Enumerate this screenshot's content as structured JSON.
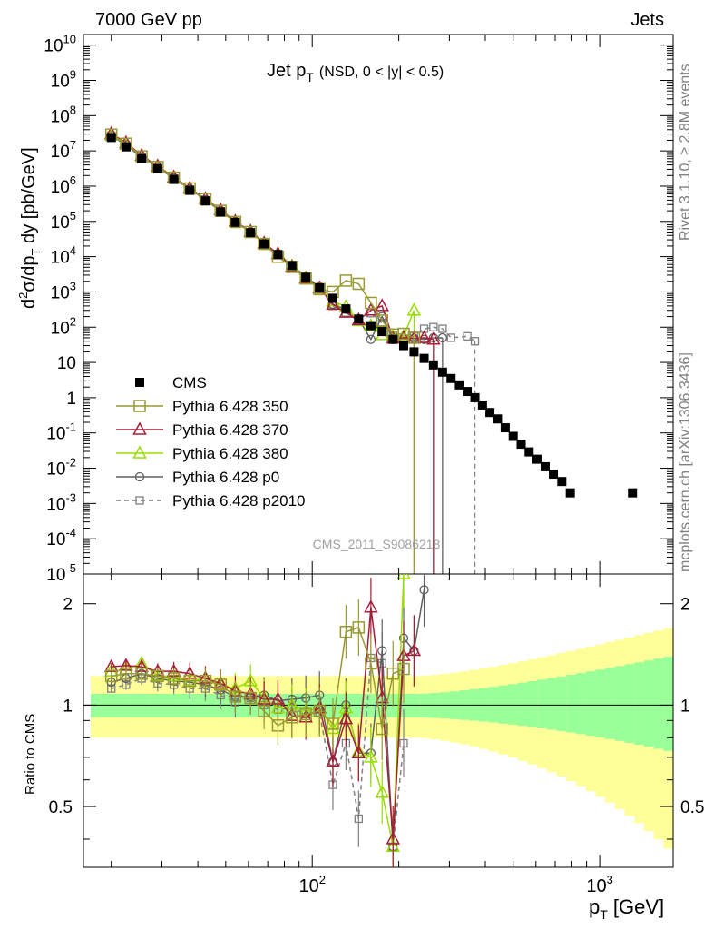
{
  "header": {
    "left": "7000 GeV pp",
    "right": "Jets",
    "side_right_top": "Rivet 3.1.10, ≥ 2.8M events",
    "side_right_bottom": "mcplots.cern.ch [arXiv:1306.3436]",
    "watermark": "CMS_2011_S9086218"
  },
  "main_panel": {
    "title_main": "Jet p",
    "title_sub": "T",
    "title_cut": "(NSD,   0 < |y| < 0.5)",
    "ylabel": "d²σ/dp_T dy [pb/GeV]",
    "ytick_labels": [
      "10^10",
      "10^9",
      "10^8",
      "10^7",
      "10^6",
      "10^5",
      "10^4",
      "10^3",
      "10^2",
      "10",
      "1",
      "10^-1",
      "10^-2",
      "10^-3",
      "10^-4",
      "10^-5"
    ]
  },
  "ratio_panel": {
    "ylabel": "Ratio to CMS",
    "ytick_labels": [
      "2",
      "1",
      "0.5"
    ]
  },
  "xaxis": {
    "label": "p_T [GeV]",
    "tick_labels": [
      "10^2",
      "10^3"
    ]
  },
  "chart_data": {
    "type": "scatter",
    "xscale": "log",
    "yscale": "log",
    "xlim": [
      16,
      1800
    ],
    "ylim": [
      1e-05,
      20000000000.0
    ],
    "ratio_ylim": [
      0.33,
      2.45
    ],
    "legend_position": "bottom-left",
    "x": [
      20,
      22.5,
      25.5,
      29,
      33,
      37.5,
      42.5,
      48,
      54,
      61,
      68,
      76,
      85,
      95,
      106,
      118,
      131,
      145,
      160,
      175,
      191,
      208,
      226,
      245,
      264,
      284,
      304,
      325,
      346,
      368,
      391,
      415,
      441,
      469,
      500,
      533,
      568,
      605,
      646,
      690,
      738,
      790,
      1300
    ],
    "series": [
      {
        "name": "CMS",
        "color": "#000000",
        "values": [
          24000000.0,
          13000000.0,
          6000000.0,
          3100000.0,
          1550000.0,
          760000.0,
          380000.0,
          185000.0,
          94000.0,
          48000.0,
          23000.0,
          11500.0,
          5600.0,
          2600.0,
          1300.0,
          660.0,
          330.0,
          170.0,
          110.0,
          75,
          45,
          30,
          20,
          13,
          8.5,
          5.3,
          3.5,
          2.3,
          1.5,
          1.0,
          0.62,
          0.38,
          0.25,
          0.14,
          0.08,
          0.048,
          0.029,
          0.018,
          0.011,
          0.0068,
          0.0042,
          0.002,
          0.002
        ]
      },
      {
        "name": "Pythia 6.428 350",
        "color": "#999933",
        "x": [
          20,
          22.5,
          25.5,
          29,
          33,
          37.5,
          42.5,
          48,
          54,
          61,
          68,
          76,
          85,
          95,
          106,
          118,
          131,
          145,
          160,
          175,
          191,
          208,
          226
        ],
        "values": [
          29000000.0,
          16000000.0,
          7000000.0,
          3500000.0,
          1750000.0,
          860000.0,
          430000.0,
          200000.0,
          96000.0,
          50000.0,
          23000.0,
          9900.0,
          5100.0,
          2400.0,
          1200.0,
          1000.0,
          2100.0,
          1700.0,
          490.0,
          155.0,
          62,
          65,
          50
        ],
        "ratio": [
          1.22,
          1.24,
          1.24,
          1.22,
          1.2,
          1.18,
          1.18,
          1.15,
          1.06,
          1.05,
          0.96,
          0.87,
          0.92,
          0.94,
          0.96,
          0.88,
          1.65,
          1.7,
          1.33,
          0.85,
          1.24,
          1.28
        ]
      },
      {
        "name": "Pythia 6.428 370",
        "color": "#a51e37",
        "x": [
          20,
          22.5,
          25.5,
          29,
          33,
          37.5,
          42.5,
          48,
          54,
          61,
          68,
          76,
          85,
          95,
          106,
          118,
          131,
          145,
          160,
          175,
          191,
          208,
          226,
          245,
          264
        ],
        "values": [
          31000000.0,
          17000000.0,
          7400000.0,
          3700000.0,
          1800000.0,
          880000.0,
          440000.0,
          210000.0,
          100000.0,
          52000.0,
          24000.0,
          12000.0,
          5100.0,
          2400.0,
          1300.0,
          440.0,
          260.0,
          160.0,
          300.0,
          400.0,
          48,
          50,
          48,
          50,
          45
        ],
        "ratio": [
          1.3,
          1.31,
          1.3,
          1.26,
          1.26,
          1.24,
          1.2,
          1.16,
          1.1,
          1.08,
          1.04,
          1.04,
          0.93,
          0.92,
          0.98,
          0.68,
          0.91,
          0.72,
          1.95,
          1.05,
          0.4,
          1.4,
          1.45
        ]
      },
      {
        "name": "Pythia 6.428 380",
        "color": "#99dd00",
        "x": [
          20,
          22.5,
          25.5,
          29,
          33,
          37.5,
          42.5,
          48,
          54,
          61,
          68,
          76,
          85,
          95,
          106,
          118,
          131,
          145,
          160,
          175,
          191,
          208,
          226
        ],
        "values": [
          28000000.0,
          15500000.0,
          7200000.0,
          3500000.0,
          1750000.0,
          870000.0,
          440000.0,
          210000.0,
          100000.0,
          52000.0,
          24000.0,
          12000.0,
          5400.0,
          2500.0,
          1200.0,
          550.0,
          380.0,
          150.0,
          110.0,
          60,
          55,
          55,
          300
        ],
        "ratio": [
          1.26,
          1.28,
          1.33,
          1.22,
          1.22,
          1.18,
          1.2,
          1.15,
          1.12,
          1.18,
          1.05,
          0.98,
          1.0,
          0.96,
          0.98,
          0.85,
          0.98,
          0.73,
          0.7,
          0.55,
          0.38,
          2.45
        ]
      },
      {
        "name": "Pythia 6.428 p0",
        "color": "#5f5f5f",
        "x": [
          20,
          22.5,
          25.5,
          29,
          33,
          37.5,
          42.5,
          48,
          54,
          61,
          68,
          76,
          85,
          95,
          106,
          118,
          131,
          145,
          160,
          175,
          191,
          208,
          226,
          245,
          264,
          284
        ],
        "values": [
          27000000.0,
          15000000.0,
          6800000.0,
          3400000.0,
          1700000.0,
          830000.0,
          410000.0,
          200000.0,
          98000.0,
          50000.0,
          24000.0,
          12000.0,
          5700.0,
          2700.0,
          1400.0,
          450.0,
          320.0,
          170.0,
          45,
          200,
          45,
          50,
          48,
          45,
          50,
          50
        ],
        "ratio": [
          1.17,
          1.2,
          1.24,
          1.2,
          1.18,
          1.17,
          1.15,
          1.11,
          1.06,
          1.06,
          1.07,
          1.03,
          1.04,
          1.05,
          1.07,
          0.68,
          1.0,
          0.72,
          0.72,
          1.45,
          0.38,
          1.58,
          1.45,
          2.2
        ]
      },
      {
        "name": "Pythia 6.428 p2010",
        "color": "#808080",
        "dashed": true,
        "x": [
          20,
          22.5,
          25.5,
          29,
          33,
          37.5,
          42.5,
          48,
          54,
          61,
          68,
          76,
          85,
          95,
          106,
          118,
          131,
          145,
          160,
          175,
          191,
          208,
          226,
          245,
          264,
          284,
          304,
          346,
          368
        ],
        "values": [
          27000000.0,
          14500000.0,
          6500000.0,
          3300000.0,
          1650000.0,
          800000.0,
          400000.0,
          195000.0,
          94000.0,
          48000.0,
          23000.0,
          11000.0,
          5300.0,
          2500.0,
          1250.0,
          400.0,
          260.0,
          150.0,
          250.0,
          130.0,
          60,
          45,
          55,
          90,
          100,
          90,
          50,
          55,
          40
        ],
        "ratio": [
          1.12,
          1.15,
          1.2,
          1.16,
          1.15,
          1.12,
          1.12,
          1.07,
          1.02,
          1.05,
          1.0,
          0.97,
          0.98,
          0.94,
          0.95,
          0.58,
          0.77,
          0.46,
          1.38,
          1.33,
          0.38,
          0.77
        ]
      }
    ],
    "band_ratio": {
      "stat_syst_inner": [
        0.92,
        1.08
      ],
      "stat_syst_outer": [
        0.8,
        1.25
      ]
    }
  }
}
